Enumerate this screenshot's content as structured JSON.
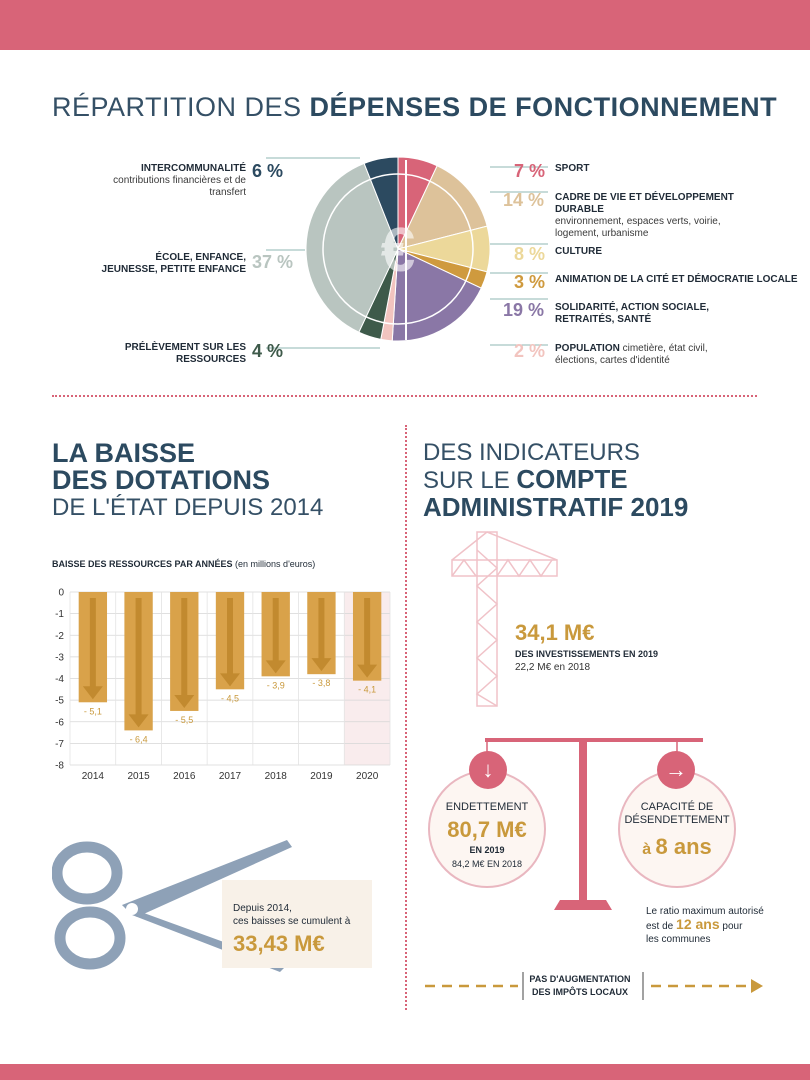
{
  "section1": {
    "title_light": "RÉPARTITION DES ",
    "title_bold": "DÉPENSES DE FONCTIONNEMENT",
    "euro_symbol": "€"
  },
  "pie": {
    "type": "pie",
    "slices": [
      {
        "label": "SPORT",
        "sub": "",
        "pct_text": "7 %",
        "value": 7,
        "color": "#d86478"
      },
      {
        "label": "CADRE DE VIE ET DÉVELOPPEMENT DURABLE",
        "sub": "environnement, espaces verts, voirie, logement, urbanisme",
        "pct_text": "14 %",
        "value": 14,
        "color": "#ddc29a"
      },
      {
        "label": "CULTURE",
        "sub": "",
        "pct_text": "8 %",
        "value": 8,
        "color": "#ecd89a"
      },
      {
        "label": "ANIMATION DE LA CITÉ ET DÉMOCRATIE LOCALE",
        "sub": "",
        "pct_text": "3 %",
        "value": 3,
        "color": "#cf9a3e"
      },
      {
        "label": "SOLIDARITÉ, ACTION SOCIALE, RETRAITÉS, SANTÉ",
        "sub": "",
        "pct_text": "19 %",
        "value": 19,
        "color": "#8a77a6"
      },
      {
        "label": "POPULATION",
        "sub": "cimetière, état civil, élections, cartes d'identité",
        "pct_text": "2 %",
        "value": 2,
        "color": "#f2c4bf"
      },
      {
        "label": "PRÉLÈVEMENT SUR LES RESSOURCES",
        "sub": "",
        "pct_text": "4 %",
        "value": 4,
        "color": "#3e5a4a"
      },
      {
        "label": "ÉCOLE, ENFANCE, JEUNESSE, PETITE ENFANCE",
        "sub": "",
        "pct_text": "37 %",
        "value": 37,
        "color": "#b9c5c0"
      },
      {
        "label": "INTERCOMMUNALITÉ",
        "sub": "contributions financières et de transfert",
        "pct_text": "6 %",
        "value": 6,
        "color": "#2c4a60"
      }
    ]
  },
  "section2": {
    "title_bold1": "LA BAISSE",
    "title_bold2": "DES DOTATIONS",
    "title_light": "DE L'ÉTAT DEPUIS 2014",
    "chart_title_bold": "BAISSE DES RESSOURCES PAR ANNÉES",
    "chart_title_light": " (en millions d'euros)",
    "cumul_line1": "Depuis 2014,",
    "cumul_line2": "ces baisses se cumulent à",
    "cumul_value": "33,43 M€"
  },
  "chart_data": {
    "type": "bar",
    "categories": [
      "2014",
      "2015",
      "2016",
      "2017",
      "2018",
      "2019",
      "2020"
    ],
    "values": [
      -5.1,
      -6.4,
      -5.5,
      -4.5,
      -3.9,
      -3.8,
      -4.1
    ],
    "value_labels": [
      "- 5,1",
      "- 6,4",
      "- 5,5",
      "- 4,5",
      "- 3,9",
      "- 3,8",
      "- 4,1"
    ],
    "title": "BAISSE DES RESSOURCES PAR ANNÉES (en millions d'euros)",
    "ylim": [
      -8,
      0
    ],
    "yticks": [
      "0",
      "-1",
      "-2",
      "-3",
      "-4",
      "-5",
      "-6",
      "-7",
      "-8"
    ],
    "highlight_category": "2020",
    "bar_color": "#d9a24a",
    "grid": true
  },
  "section3": {
    "title_l1": "DES INDICATEURS",
    "title_l2_light": "SUR LE ",
    "title_l2_bold": "COMPTE",
    "title_l3": "ADMINISTRATIF 2019",
    "invest_value": "34,1 M€",
    "invest_label": "DES INVESTISSEMENTS EN 2019",
    "invest_sub": "22,2 M€ en 2018",
    "debt_title": "ENDETTEMENT",
    "debt_value": "80,7 M€",
    "debt_year": "EN 2019",
    "debt_sub": "84,2 M€ EN 2018",
    "cap_title1": "CAPACITÉ DE",
    "cap_title2": "DÉSENDETTEMENT",
    "cap_value_prefix": "à ",
    "cap_value": "8 ans",
    "ratio_line1": "Le ratio maximum autorisé",
    "ratio_line2a": "est de ",
    "ratio_value": "12 ans",
    "ratio_line2b": " pour",
    "ratio_line3": "les communes",
    "tax_line1": "PAS D'AUGMENTATION",
    "tax_line2": "DES IMPÔTS LOCAUX",
    "down_arrow": "↓",
    "right_arrow": "→"
  }
}
